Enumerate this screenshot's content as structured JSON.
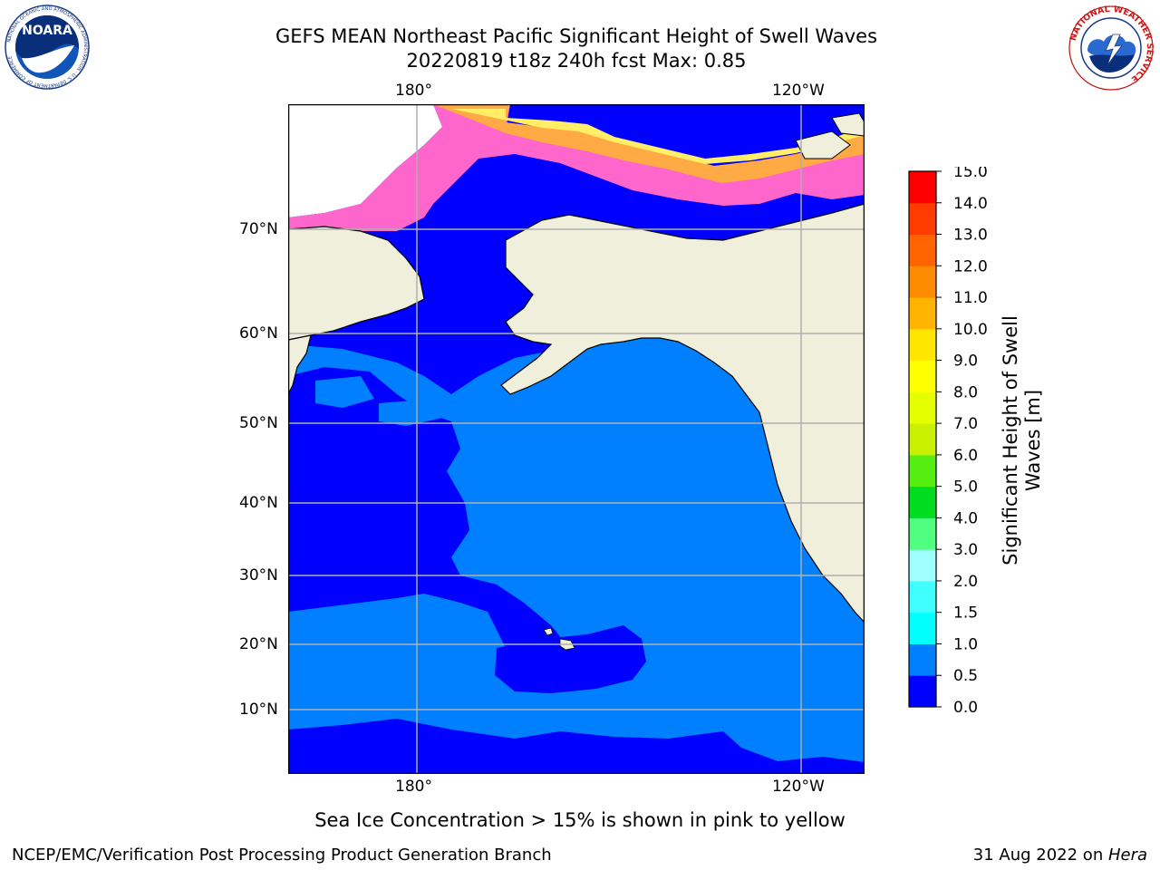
{
  "title": {
    "line1": "GEFS MEAN Northeast Pacific Significant Height of Swell Waves",
    "line2": "20220819 t18z 240h fcst   Max: 0.85"
  },
  "logos": {
    "left": {
      "name": "NOARA",
      "ring_text": "NATIONAL OCEANIC AND ATMOSPHERIC ADMINISTRATION · U.S. DEPARTMENT OF COMMERCE"
    },
    "right": {
      "ring_text": "NATIONAL WEATHER SERVICE"
    }
  },
  "map": {
    "lon_labels_top": [
      "180°",
      "120°W"
    ],
    "lon_labels_bottom": [
      "180°",
      "120°W"
    ],
    "lat_labels": [
      "70°N",
      "60°N",
      "50°N",
      "40°N",
      "30°N",
      "20°N",
      "10°N"
    ],
    "colors": {
      "ocean_low": "#0000ff",
      "ocean_mid": "#0080ff",
      "land": "#efefdc",
      "grid": "#b0b0b0",
      "ice_pink": "#ff66cc",
      "ice_orange": "#ffaa44",
      "ice_yellow": "#ffee66"
    }
  },
  "colorbar": {
    "label": "Significant Height of Swell Waves [m]",
    "ticks": [
      "0.0",
      "0.5",
      "1.0",
      "1.5",
      "2.0",
      "3.0",
      "4.0",
      "5.0",
      "6.0",
      "7.0",
      "8.0",
      "9.0",
      "10.0",
      "11.0",
      "12.0",
      "13.0",
      "14.0",
      "15.0"
    ],
    "colors": [
      "#0000ff",
      "#0080ff",
      "#00ffff",
      "#40ffff",
      "#a0ffff",
      "#50ff80",
      "#00dd20",
      "#55ee10",
      "#c8f000",
      "#e6ff00",
      "#ffff00",
      "#ffe600",
      "#ffb400",
      "#ff8c00",
      "#ff6400",
      "#ff3c00",
      "#ff0000"
    ]
  },
  "caption": "Sea Ice Concentration > 15% is shown in pink to yellow",
  "footer": {
    "left": "NCEP/EMC/Verification Post Processing Product Generation Branch",
    "right_date": "31 Aug 2022 on ",
    "right_host": "Hera"
  }
}
